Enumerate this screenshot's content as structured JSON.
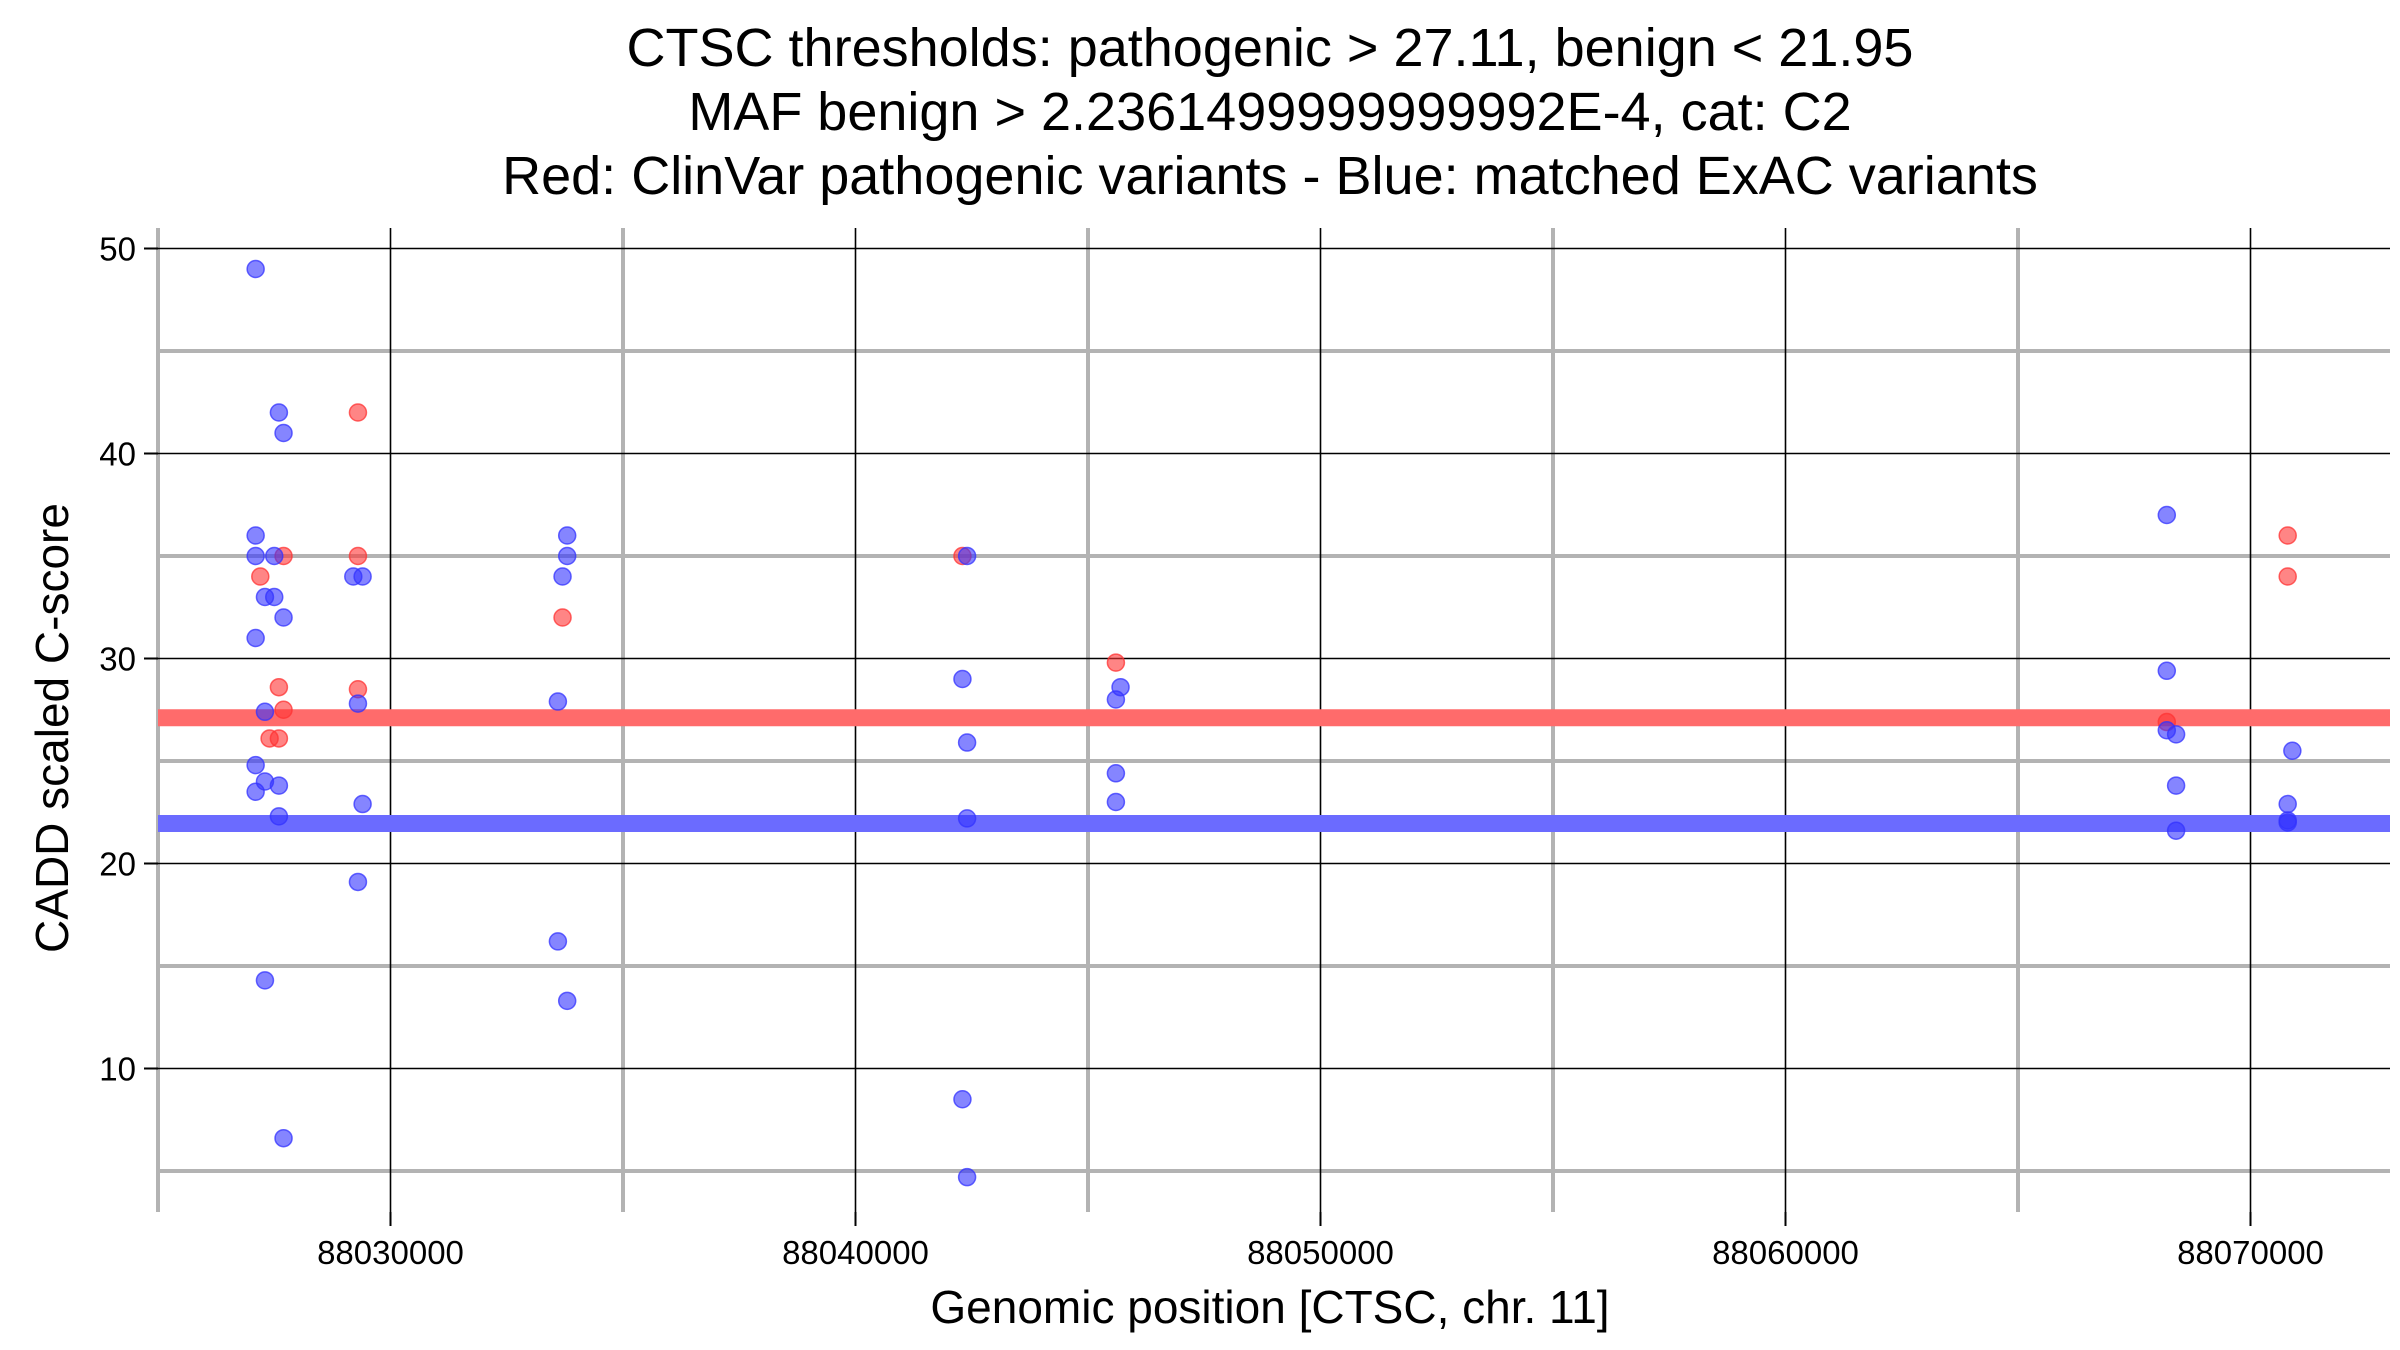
{
  "chart_data": {
    "type": "scatter",
    "title_lines": [
      "CTSC thresholds: pathogenic > 27.11, benign < 21.95",
      "MAF benign > 2.2361499999999992E-4, cat: C2",
      "Red: ClinVar pathogenic variants - Blue: matched ExAC variants"
    ],
    "xlabel": "Genomic position [CTSC, chr. 11]",
    "ylabel": "CADD scaled C-score",
    "xlim": [
      88025000,
      88073000
    ],
    "ylim": [
      3,
      51
    ],
    "x_ticks": [
      88030000,
      88040000,
      88050000,
      88060000,
      88070000
    ],
    "x_tick_labels": [
      "88030000",
      "88040000",
      "88050000",
      "88060000",
      "88070000"
    ],
    "y_ticks": [
      10,
      20,
      30,
      40,
      50
    ],
    "y_tick_labels": [
      "10",
      "20",
      "30",
      "40",
      "50"
    ],
    "grid": true,
    "thresholds": [
      {
        "kind": "pathogenic",
        "y": 27.11,
        "color": "#ff6b6b"
      },
      {
        "kind": "benign",
        "y": 21.95,
        "color": "#6b6bff"
      }
    ],
    "series": [
      {
        "kind": "pathogenic",
        "color": "#ff3333",
        "points": [
          [
            88027200,
            34
          ],
          [
            88027700,
            35
          ],
          [
            88027400,
            26.1
          ],
          [
            88027600,
            26.1
          ],
          [
            88027600,
            28.6
          ],
          [
            88027700,
            27.5
          ],
          [
            88029300,
            42
          ],
          [
            88029300,
            35
          ],
          [
            88029300,
            28.5
          ],
          [
            88033700,
            32
          ],
          [
            88042300,
            35
          ],
          [
            88045600,
            29.8
          ],
          [
            88068200,
            26.9
          ],
          [
            88070800,
            36
          ],
          [
            88070800,
            34
          ]
        ]
      },
      {
        "kind": "benign",
        "color": "#3333ff",
        "points": [
          [
            88027100,
            49
          ],
          [
            88027600,
            42
          ],
          [
            88027700,
            41
          ],
          [
            88027100,
            36
          ],
          [
            88027100,
            35
          ],
          [
            88027500,
            35
          ],
          [
            88027300,
            33
          ],
          [
            88027500,
            33
          ],
          [
            88027700,
            32
          ],
          [
            88027100,
            31
          ],
          [
            88027300,
            27.4
          ],
          [
            88027100,
            24.8
          ],
          [
            88027300,
            24
          ],
          [
            88027600,
            23.8
          ],
          [
            88027100,
            23.5
          ],
          [
            88027600,
            22.3
          ],
          [
            88027300,
            14.3
          ],
          [
            88027700,
            6.6
          ],
          [
            88029200,
            34
          ],
          [
            88029400,
            34
          ],
          [
            88029300,
            27.8
          ],
          [
            88029400,
            22.9
          ],
          [
            88029300,
            19.1
          ],
          [
            88033800,
            36
          ],
          [
            88033800,
            35
          ],
          [
            88033700,
            34
          ],
          [
            88033600,
            27.9
          ],
          [
            88033600,
            16.2
          ],
          [
            88033800,
            13.3
          ],
          [
            88042400,
            35
          ],
          [
            88042300,
            29
          ],
          [
            88042400,
            25.9
          ],
          [
            88042400,
            22.2
          ],
          [
            88042300,
            8.5
          ],
          [
            88042400,
            4.7
          ],
          [
            88045700,
            28.6
          ],
          [
            88045600,
            28
          ],
          [
            88045600,
            24.4
          ],
          [
            88045600,
            23
          ],
          [
            88068200,
            37
          ],
          [
            88068200,
            29.4
          ],
          [
            88068200,
            26.5
          ],
          [
            88068400,
            26.3
          ],
          [
            88068400,
            23.8
          ],
          [
            88068400,
            21.6
          ],
          [
            88070900,
            25.5
          ],
          [
            88070800,
            22.9
          ],
          [
            88070800,
            22.1
          ],
          [
            88070800,
            22
          ]
        ]
      }
    ]
  }
}
